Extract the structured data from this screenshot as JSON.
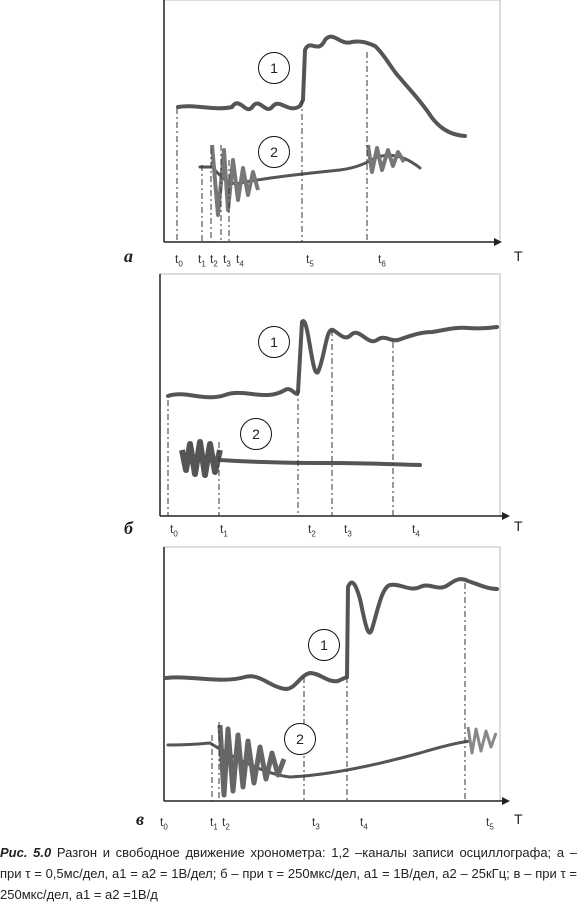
{
  "panels": [
    {
      "letter": "а",
      "axis_label": "T",
      "channels": [
        "1",
        "2"
      ],
      "markers": [
        "t0",
        "t1",
        "t2",
        "t3",
        "t4",
        "t5",
        "t6"
      ]
    },
    {
      "letter": "б",
      "axis_label": "T",
      "channels": [
        "1",
        "2"
      ],
      "markers": [
        "t0",
        "t1",
        "t2",
        "t3",
        "t4"
      ]
    },
    {
      "letter": "в",
      "axis_label": "T",
      "channels": [
        "1",
        "2"
      ],
      "markers": [
        "t0",
        "t1",
        "t2",
        "t3",
        "t4",
        "t5"
      ]
    }
  ],
  "caption": {
    "number": "Рис. 5.0",
    "text": "Разгон и свободное движение хронометра: 1,2 –каналы записи осциллографа; а – при τ = 0,5мс/дел, а1 = а2 = 1В/дел; б – при τ = 250мкс/дел, а1 = 1В/дел, а2 – 25кГц; в – при τ = 250мкс/дел, а1 = а2 =1В/д"
  },
  "colors": {
    "trace": "#555555",
    "burst": "#777777",
    "axis": "#222222"
  }
}
